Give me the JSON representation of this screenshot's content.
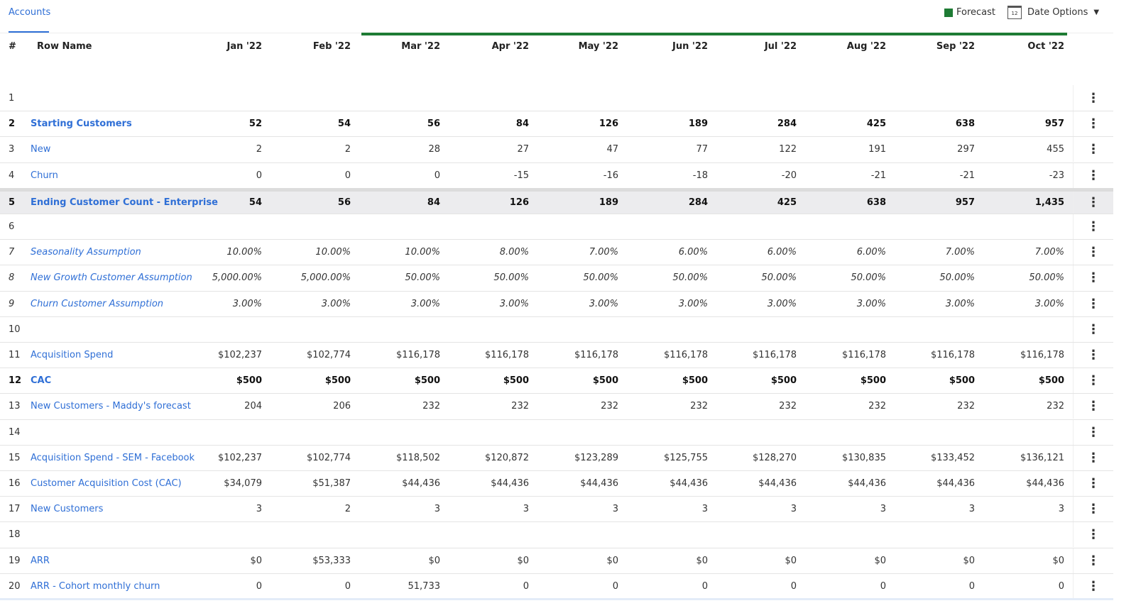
{
  "tab": {
    "label": "Accounts"
  },
  "legend": {
    "label": "Forecast",
    "color": "#1e7b34"
  },
  "date_options": {
    "label": "Date Options",
    "icon": "calendar-icon",
    "icon_text": "12"
  },
  "columns": {
    "num": "#",
    "name": "Row Name",
    "months": [
      "Jan '22",
      "Feb '22",
      "Mar '22",
      "Apr '22",
      "May '22",
      "Jun '22",
      "Jul '22",
      "Aug '22",
      "Sep '22",
      "Oct '22"
    ]
  },
  "menu_glyph": "⋮",
  "rows": [
    {
      "num": "1",
      "name": "",
      "style": "normal",
      "values": [
        "",
        "",
        "",
        "",
        "",
        "",
        "",
        "",
        "",
        ""
      ]
    },
    {
      "num": "2",
      "name": "Starting Customers",
      "style": "bold",
      "values": [
        "52",
        "54",
        "56",
        "84",
        "126",
        "189",
        "284",
        "425",
        "638",
        "957"
      ]
    },
    {
      "num": "3",
      "name": "New",
      "style": "normal",
      "values": [
        "2",
        "2",
        "28",
        "27",
        "47",
        "77",
        "122",
        "191",
        "297",
        "455"
      ]
    },
    {
      "num": "4",
      "name": "Churn",
      "style": "normal",
      "values": [
        "0",
        "0",
        "0",
        "-15",
        "-16",
        "-18",
        "-20",
        "-21",
        "-21",
        "-23"
      ]
    },
    {
      "num": "5",
      "name": "Ending Customer Count - Enterprise",
      "style": "bold highlight",
      "values": [
        "54",
        "56",
        "84",
        "126",
        "189",
        "284",
        "425",
        "638",
        "957",
        "1,435"
      ]
    },
    {
      "num": "6",
      "name": "",
      "style": "normal",
      "values": [
        "",
        "",
        "",
        "",
        "",
        "",
        "",
        "",
        "",
        ""
      ]
    },
    {
      "num": "7",
      "name": "Seasonality Assumption",
      "style": "italic",
      "values": [
        "10.00%",
        "10.00%",
        "10.00%",
        "8.00%",
        "7.00%",
        "6.00%",
        "6.00%",
        "6.00%",
        "7.00%",
        "7.00%"
      ]
    },
    {
      "num": "8",
      "name": "New Growth Customer Assumption",
      "style": "italic",
      "values": [
        "5,000.00%",
        "5,000.00%",
        "50.00%",
        "50.00%",
        "50.00%",
        "50.00%",
        "50.00%",
        "50.00%",
        "50.00%",
        "50.00%"
      ]
    },
    {
      "num": "9",
      "name": "Churn Customer Assumption",
      "style": "italic",
      "values": [
        "3.00%",
        "3.00%",
        "3.00%",
        "3.00%",
        "3.00%",
        "3.00%",
        "3.00%",
        "3.00%",
        "3.00%",
        "3.00%"
      ]
    },
    {
      "num": "10",
      "name": "",
      "style": "normal",
      "values": [
        "",
        "",
        "",
        "",
        "",
        "",
        "",
        "",
        "",
        ""
      ]
    },
    {
      "num": "11",
      "name": "Acquisition Spend",
      "style": "normal",
      "values": [
        "$102,237",
        "$102,774",
        "$116,178",
        "$116,178",
        "$116,178",
        "$116,178",
        "$116,178",
        "$116,178",
        "$116,178",
        "$116,178"
      ]
    },
    {
      "num": "12",
      "name": "CAC",
      "style": "bold",
      "values": [
        "$500",
        "$500",
        "$500",
        "$500",
        "$500",
        "$500",
        "$500",
        "$500",
        "$500",
        "$500"
      ]
    },
    {
      "num": "13",
      "name": "New Customers - Maddy's forecast",
      "style": "normal",
      "values": [
        "204",
        "206",
        "232",
        "232",
        "232",
        "232",
        "232",
        "232",
        "232",
        "232"
      ]
    },
    {
      "num": "14",
      "name": "",
      "style": "normal",
      "values": [
        "",
        "",
        "",
        "",
        "",
        "",
        "",
        "",
        "",
        ""
      ]
    },
    {
      "num": "15",
      "name": "Acquisition Spend - SEM - Facebook",
      "style": "normal",
      "values": [
        "$102,237",
        "$102,774",
        "$118,502",
        "$120,872",
        "$123,289",
        "$125,755",
        "$128,270",
        "$130,835",
        "$133,452",
        "$136,121"
      ]
    },
    {
      "num": "16",
      "name": "Customer Acquisition Cost (CAC)",
      "style": "normal",
      "values": [
        "$34,079",
        "$51,387",
        "$44,436",
        "$44,436",
        "$44,436",
        "$44,436",
        "$44,436",
        "$44,436",
        "$44,436",
        "$44,436"
      ]
    },
    {
      "num": "17",
      "name": "New Customers",
      "style": "normal",
      "values": [
        "3",
        "2",
        "3",
        "3",
        "3",
        "3",
        "3",
        "3",
        "3",
        "3"
      ]
    },
    {
      "num": "18",
      "name": "",
      "style": "normal",
      "values": [
        "",
        "",
        "",
        "",
        "",
        "",
        "",
        "",
        "",
        ""
      ]
    },
    {
      "num": "19",
      "name": "ARR",
      "style": "normal",
      "values": [
        "$0",
        "$53,333",
        "$0",
        "$0",
        "$0",
        "$0",
        "$0",
        "$0",
        "$0",
        "$0"
      ]
    },
    {
      "num": "20",
      "name": "ARR - Cohort monthly churn",
      "style": "normal",
      "values": [
        "0",
        "0",
        "51,733",
        "0",
        "0",
        "0",
        "0",
        "0",
        "0",
        "0"
      ]
    }
  ]
}
